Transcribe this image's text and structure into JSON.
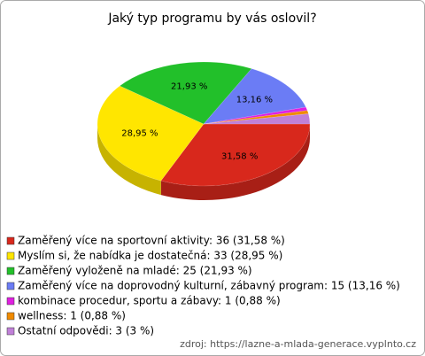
{
  "chart_data": {
    "type": "pie",
    "title": "Jaký typ programu by vás oslovil?",
    "labels": [
      "Zaměřený více na sportovní aktivity: 36 (31,58 %)",
      "Myslím si, že nabídka je dostatečná: 33 (28,95 %)",
      "Zaměřený vyloženě na mladé: 25 (21,93 %)",
      "Zaměřený více na doprovodný kulturní, zábavný program: 15 (13,16 %)",
      "kombinace procedur, sportu a zábavy: 1 (0,88 %)",
      "wellness: 1 (0,88 %)",
      "Ostatní odpovědi: 3 (3 %)"
    ],
    "values": [
      31.58,
      28.95,
      21.93,
      13.16,
      0.88,
      0.88,
      2.63
    ],
    "value_labels": [
      "31,58 %",
      "28,95 %",
      "21,93 %",
      "13,16 %",
      null,
      null,
      null
    ],
    "colors": [
      "#d8281c",
      "#ffe600",
      "#22c02a",
      "#6b7cf5",
      "#e020e0",
      "#f08a00",
      "#c080d8"
    ],
    "source": "zdroj: https://lazne-a-mlada-generace.vyplnto.cz"
  }
}
